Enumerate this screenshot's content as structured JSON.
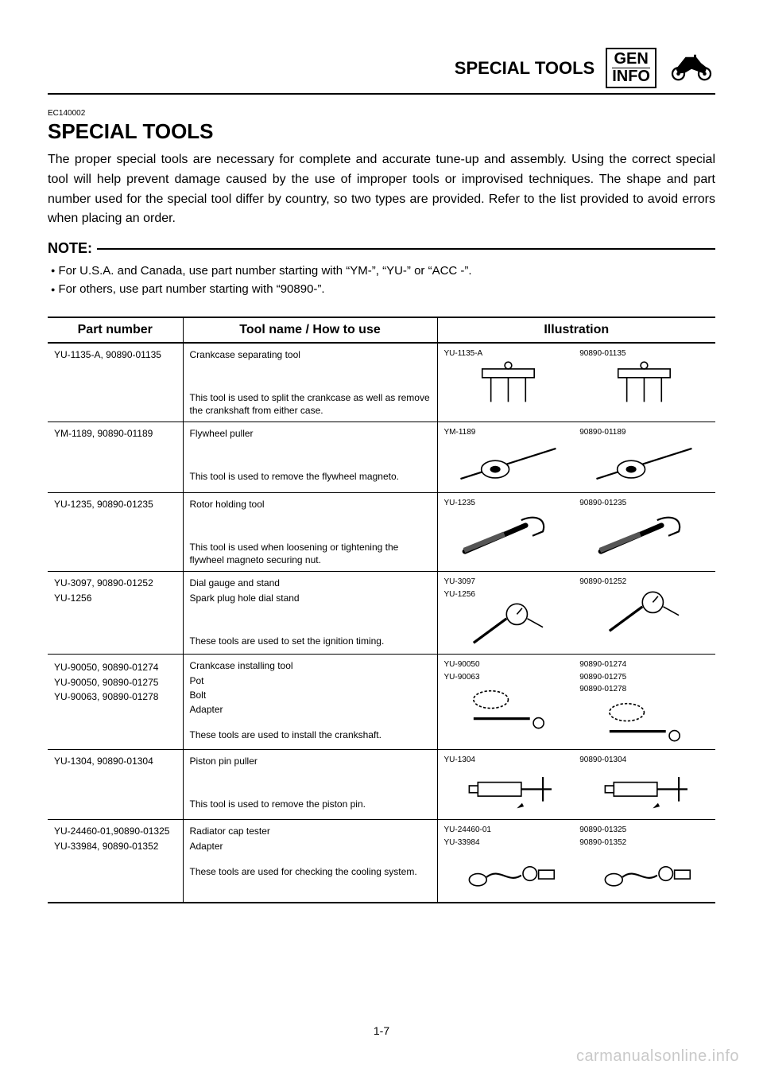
{
  "header": {
    "section_title": "SPECIAL TOOLS",
    "box_line1": "GEN",
    "box_line2": "INFO"
  },
  "ec_code": "EC140002",
  "title": "SPECIAL TOOLS",
  "intro": "The proper special tools are necessary for complete and accurate tune-up and assembly. Using the correct special tool will help prevent damage caused by the use of improper tools or improvised techniques. The shape and part number used for the special tool differ by country, so two types are provided. Refer to the list provided to avoid errors when placing an order.",
  "note_label": "NOTE:",
  "notes": [
    "For U.S.A. and Canada, use part number starting with “YM-”, “YU-” or “ACC -”.",
    "For others, use part number starting with “90890-”."
  ],
  "table": {
    "headers": {
      "pn": "Part number",
      "desc": "Tool name / How to use",
      "ill": "Illustration"
    },
    "rows": [
      {
        "pn_lines": [
          "YU-1135-A, 90890-01135"
        ],
        "tool_lines": [
          "Crankcase  separating tool"
        ],
        "use": "This tool is used to split the crankcase as well as remove the crankshaft from either case.",
        "ill_left_labels": [
          "YU-1135-A"
        ],
        "ill_right_labels": [
          "90890-01135"
        ],
        "icon": "separator"
      },
      {
        "pn_lines": [
          "YM-1189, 90890-01189"
        ],
        "tool_lines": [
          "Flywheel puller"
        ],
        "use": "This tool is used to remove the flywheel magneto.",
        "ill_left_labels": [
          "YM-1189"
        ],
        "ill_right_labels": [
          "90890-01189"
        ],
        "icon": "puller"
      },
      {
        "pn_lines": [
          "YU-1235, 90890-01235"
        ],
        "tool_lines": [
          "Rotor holding tool"
        ],
        "use": "This tool is used when loosening or tightening the flywheel magneto securing nut.",
        "ill_left_labels": [
          "YU-1235"
        ],
        "ill_right_labels": [
          "90890-01235"
        ],
        "icon": "holder"
      },
      {
        "pn_lines": [
          "YU-3097, 90890-01252",
          "YU-1256"
        ],
        "tool_lines": [
          "Dial gauge and stand",
          "Spark plug hole dial stand"
        ],
        "use": "These tools are used to set the ignition timing.",
        "ill_left_labels": [
          "YU-3097",
          "YU-1256"
        ],
        "ill_right_labels": [
          "90890-01252"
        ],
        "icon": "gauge"
      },
      {
        "pn_lines": [
          "",
          "YU-90050, 90890-01274",
          "YU-90050, 90890-01275",
          "YU-90063, 90890-01278"
        ],
        "tool_lines": [
          "Crankcase installing tool",
          "Pot",
          "Bolt",
          "Adapter"
        ],
        "use": "These tools are used to install the crankshaft.",
        "ill_left_labels": [
          "YU-90050",
          "YU-90063"
        ],
        "ill_right_labels": [
          "90890-01274",
          "90890-01275",
          "90890-01278"
        ],
        "icon": "installer",
        "tight": true
      },
      {
        "pn_lines": [
          "YU-1304, 90890-01304"
        ],
        "tool_lines": [
          "Piston pin puller"
        ],
        "use": "This tool is used to remove the piston pin.",
        "ill_left_labels": [
          "YU-1304"
        ],
        "ill_right_labels": [
          "90890-01304"
        ],
        "icon": "pinpuller"
      },
      {
        "pn_lines": [
          "YU-24460-01,90890-01325",
          "YU-33984, 90890-01352"
        ],
        "tool_lines": [
          "Radiator cap tester",
          "Adapter"
        ],
        "use": "These tools are used for checking the cooling system.",
        "ill_left_labels": [
          "YU-24460-01",
          "YU-33984"
        ],
        "ill_right_labels": [
          "90890-01325",
          "90890-01352"
        ],
        "icon": "captester",
        "tight": true
      }
    ]
  },
  "page_num": "1-7",
  "watermark": "carmanualsonline.info",
  "colors": {
    "text": "#000000",
    "bg": "#ffffff",
    "watermark": "#c9c9c9"
  }
}
